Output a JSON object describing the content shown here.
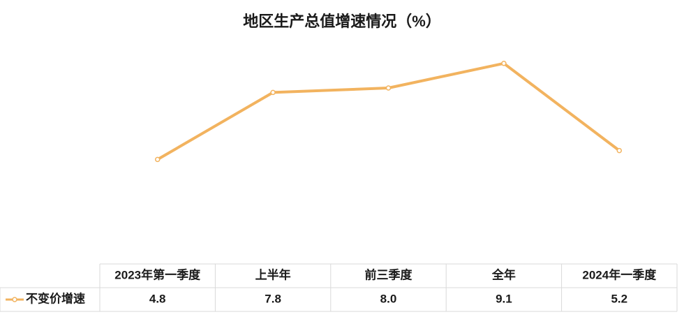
{
  "chart_data": {
    "type": "line",
    "title": "地区生产总值增速情况（%）",
    "categories": [
      "2023年第一季度",
      "上半年",
      "前三季度",
      "全年",
      "2024年一季度"
    ],
    "series": [
      {
        "name": "不变价增速",
        "color": "#f2b35f",
        "values": [
          4.8,
          7.8,
          8.0,
          9.1,
          5.2
        ],
        "value_labels": [
          "4.8",
          "7.8",
          "8.0",
          "9.1",
          "5.2"
        ]
      }
    ],
    "ylim": [
      0,
      10
    ]
  }
}
